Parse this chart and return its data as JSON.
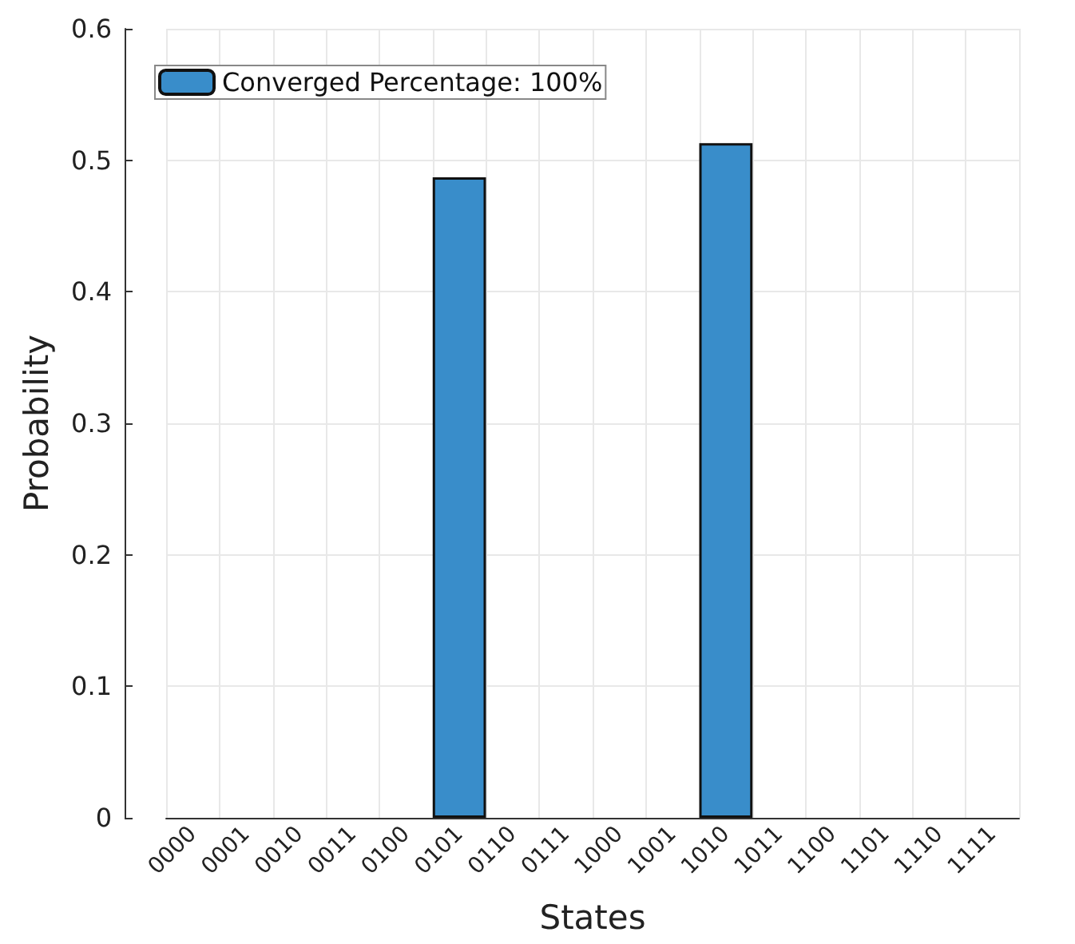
{
  "chart_data": {
    "type": "bar",
    "xlabel": "States",
    "ylabel": "Probability",
    "categories": [
      "0000",
      "0001",
      "0010",
      "0011",
      "0100",
      "0101",
      "0110",
      "0111",
      "1000",
      "1001",
      "1010",
      "1011",
      "1100",
      "1101",
      "1110",
      "1111"
    ],
    "series": [
      {
        "name": "Converged Percentage: 100%",
        "color": "#398dca",
        "values": [
          0,
          0,
          0,
          0,
          0,
          0.487,
          0,
          0,
          0,
          0,
          0.513,
          0,
          0,
          0,
          0,
          0
        ]
      }
    ],
    "ylim": [
      0,
      0.6
    ],
    "yticks": [
      0,
      0.1,
      0.2,
      0.3,
      0.4,
      0.5,
      0.6
    ],
    "grid": true,
    "legend": "top left"
  }
}
